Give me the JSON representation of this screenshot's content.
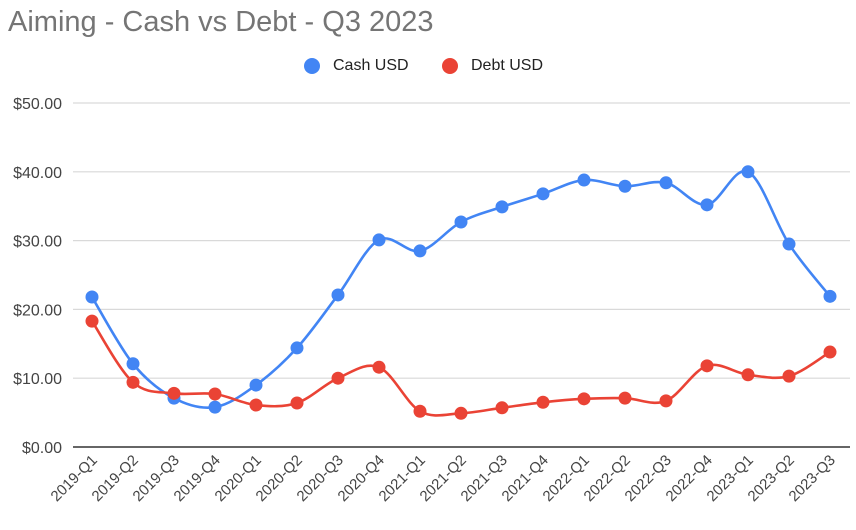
{
  "title": "Aiming - Cash vs Debt - Q3 2023",
  "legend": [
    {
      "label": "Cash USD",
      "color": "#4285f4"
    },
    {
      "label": "Debt USD",
      "color": "#ea4335"
    }
  ],
  "chart_data": {
    "type": "line",
    "title": "Aiming - Cash vs Debt - Q3 2023",
    "xlabel": "",
    "ylabel": "",
    "ylim": [
      0,
      50
    ],
    "yticks": [
      "$0.00",
      "$10.00",
      "$20.00",
      "$30.00",
      "$40.00",
      "$50.00"
    ],
    "grid": true,
    "legend_position": "top",
    "categories": [
      "2019-Q1",
      "2019-Q2",
      "2019-Q3",
      "2019-Q4",
      "2020-Q1",
      "2020-Q2",
      "2020-Q3",
      "2020-Q4",
      "2021-Q1",
      "2021-Q2",
      "2021-Q3",
      "2021-Q4",
      "2022-Q1",
      "2022-Q2",
      "2022-Q3",
      "2022-Q4",
      "2023-Q1",
      "2023-Q2",
      "2023-Q3"
    ],
    "series": [
      {
        "name": "Cash USD",
        "color": "#4285f4",
        "values": [
          21.8,
          12.1,
          7.1,
          5.8,
          9.0,
          14.4,
          22.1,
          30.1,
          28.5,
          32.7,
          34.9,
          36.8,
          38.8,
          37.9,
          38.4,
          35.2,
          40.0,
          29.5,
          21.9
        ]
      },
      {
        "name": "Debt USD",
        "color": "#ea4335",
        "values": [
          18.3,
          9.4,
          7.8,
          7.7,
          6.1,
          6.4,
          10.0,
          11.6,
          5.2,
          4.9,
          5.7,
          6.5,
          7.0,
          7.1,
          6.7,
          11.8,
          10.5,
          10.3,
          13.8
        ]
      }
    ]
  }
}
